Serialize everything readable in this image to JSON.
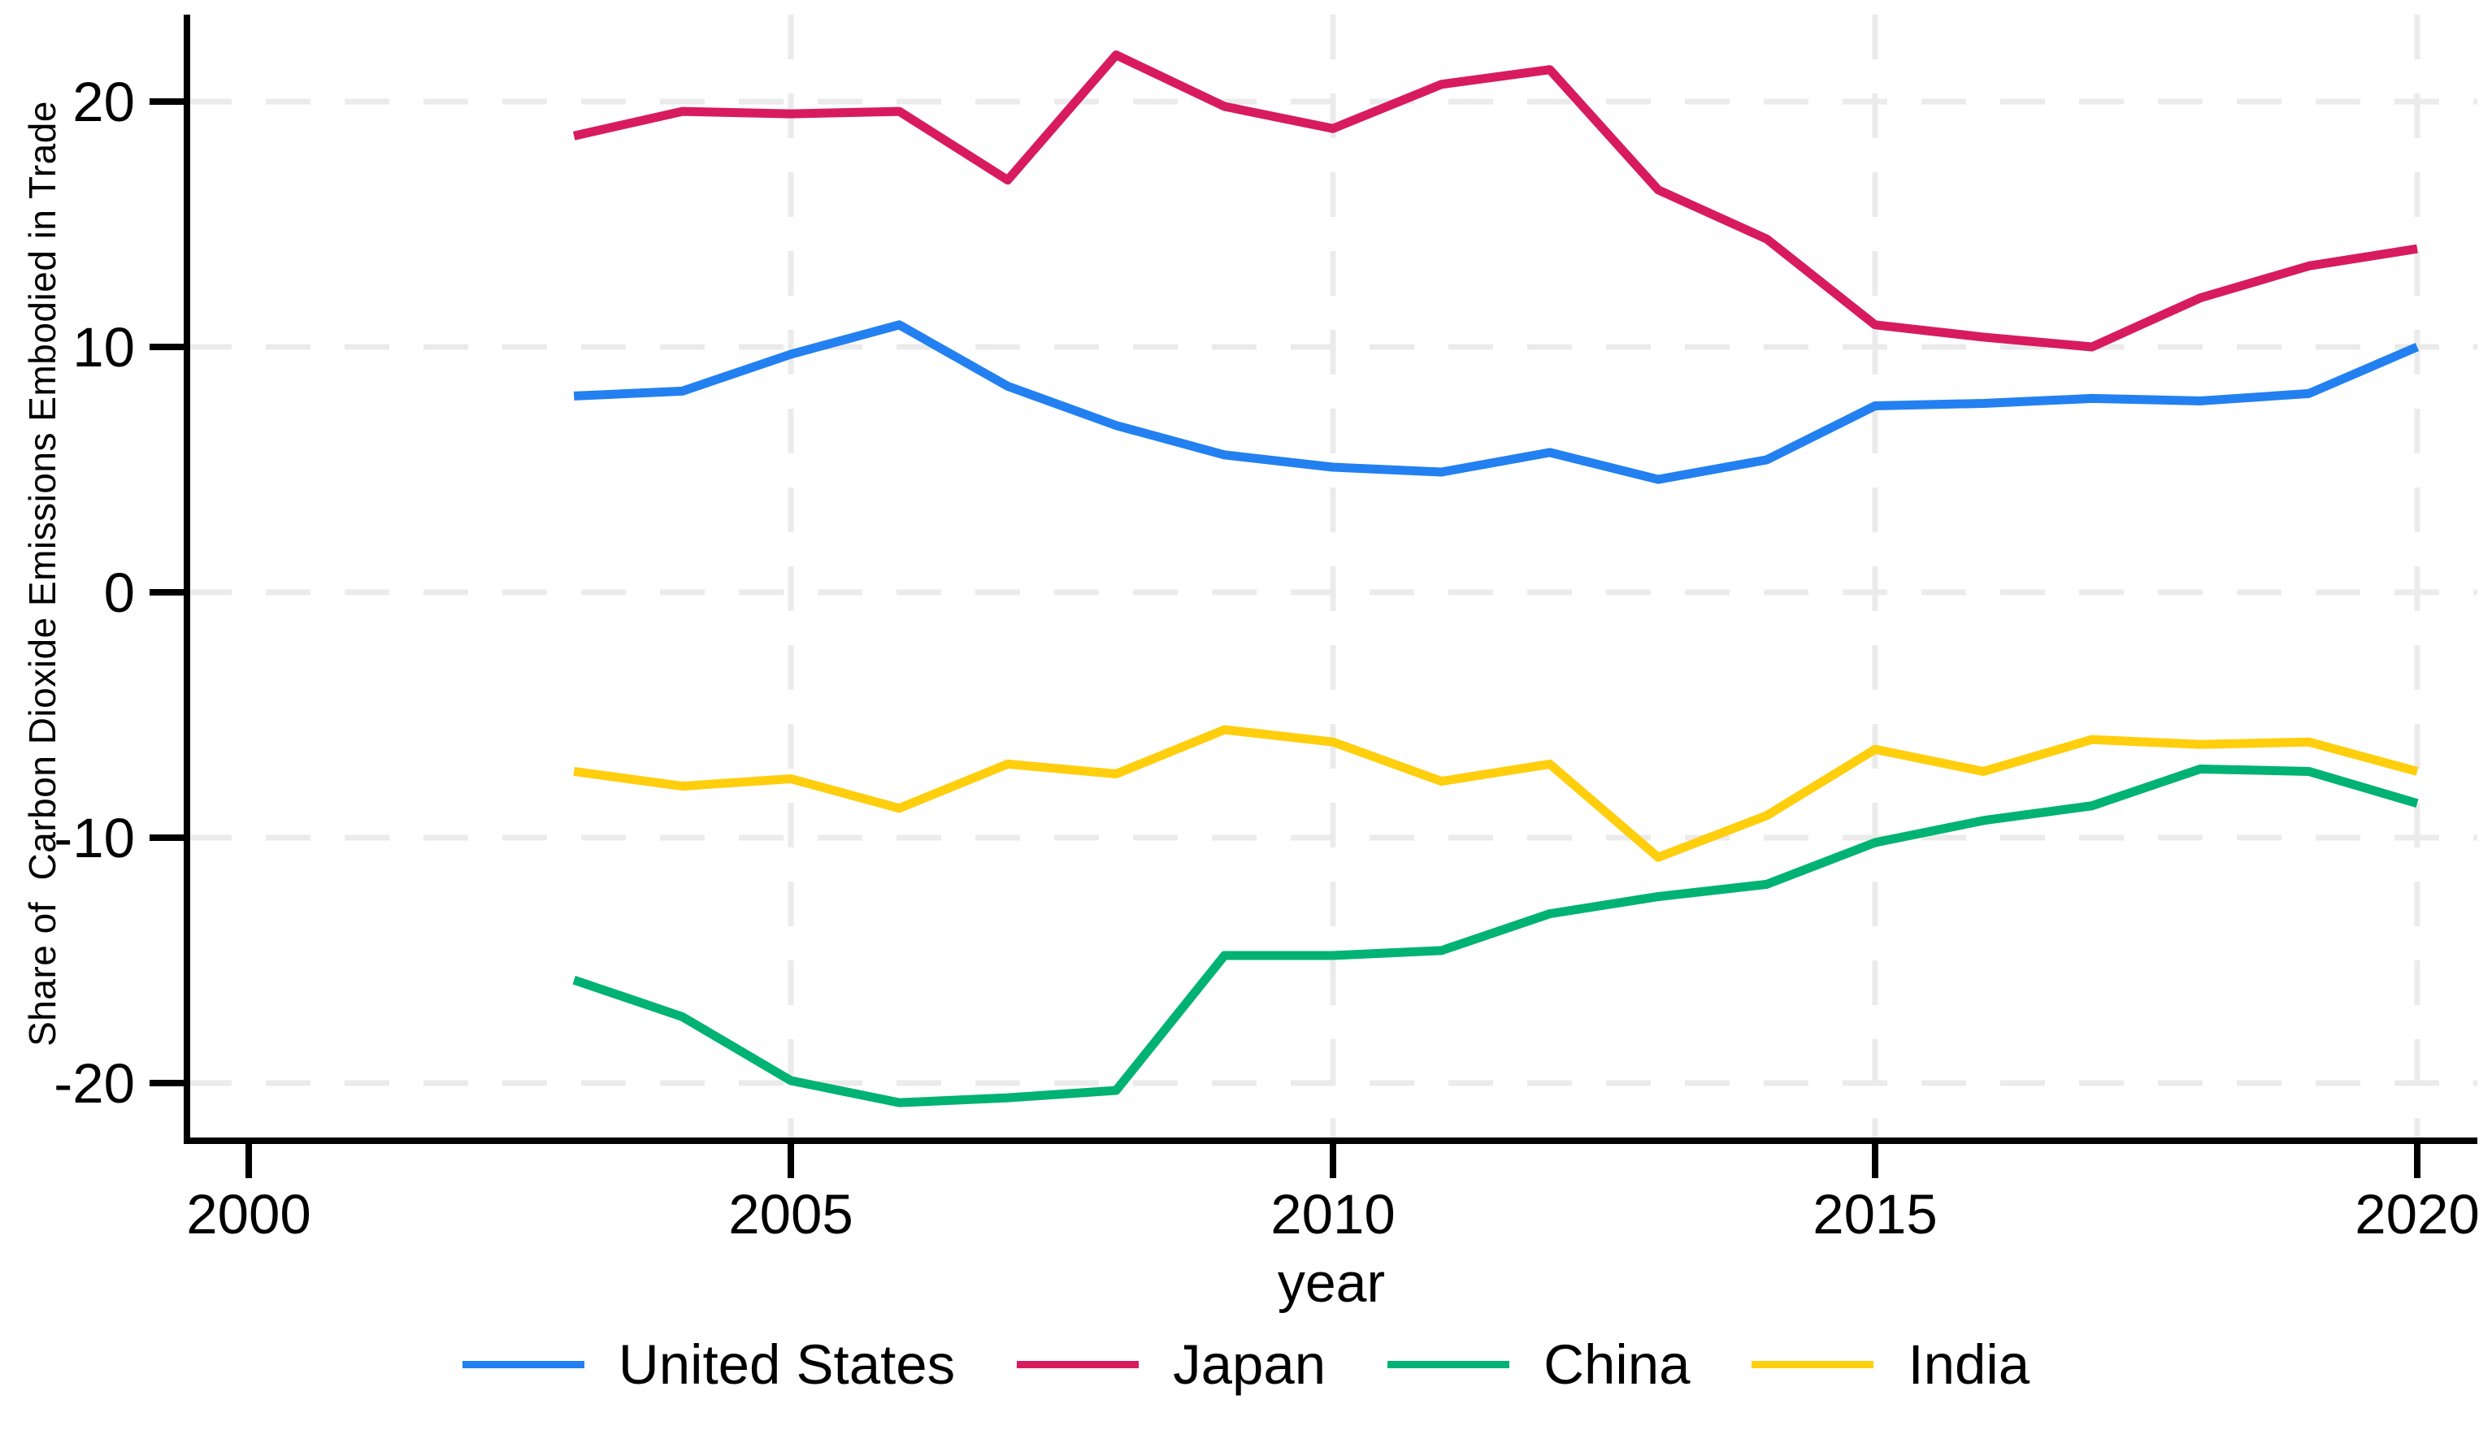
{
  "chart_data": {
    "type": "line",
    "title": "",
    "xlabel": "year",
    "ylabel": "Share of  Carbon Dioxide Emissions Embodied in Trade",
    "x": [
      2003,
      2004,
      2005,
      2006,
      2007,
      2008,
      2009,
      2010,
      2011,
      2012,
      2013,
      2014,
      2015,
      2016,
      2017,
      2018,
      2019,
      2020
    ],
    "series": [
      {
        "name": "United States",
        "color": "#2380F0",
        "values": [
          8.0,
          8.2,
          9.7,
          10.9,
          8.4,
          6.8,
          5.6,
          5.1,
          4.9,
          5.7,
          4.6,
          5.4,
          7.6,
          7.7,
          7.9,
          7.8,
          8.1,
          10.0
        ]
      },
      {
        "name": "Japan",
        "color": "#D81B5E",
        "values": [
          18.6,
          19.6,
          19.5,
          19.6,
          16.8,
          21.9,
          19.8,
          18.9,
          20.7,
          21.3,
          16.4,
          14.4,
          10.9,
          10.4,
          10.0,
          12.0,
          13.3,
          14.0
        ]
      },
      {
        "name": "China",
        "color": "#00B273",
        "values": [
          -15.8,
          -17.3,
          -19.9,
          -20.8,
          -20.6,
          -20.3,
          -14.8,
          -14.8,
          -14.6,
          -13.1,
          -12.4,
          -11.9,
          -10.2,
          -9.3,
          -8.7,
          -7.2,
          -7.3,
          -8.6
        ]
      },
      {
        "name": "India",
        "color": "#FFCE0D",
        "values": [
          -7.3,
          -7.9,
          -7.6,
          -8.8,
          -7.0,
          -7.4,
          -5.6,
          -6.1,
          -7.7,
          -7.0,
          -10.8,
          -9.1,
          -6.4,
          -7.3,
          -6.0,
          -6.2,
          -6.1,
          -7.3
        ]
      }
    ],
    "xticks": [
      2000,
      2005,
      2010,
      2015,
      2020
    ],
    "yticks": [
      -20,
      -10,
      0,
      10,
      20
    ],
    "xlim": [
      1999.4,
      2020.6
    ],
    "ylim": [
      -22.4,
      23.5
    ],
    "grid": "dashed horizontal and vertical light gray; no vertical gridline at 2000",
    "legend_position": "bottom center, horizontal",
    "axis_color": "#000000",
    "grid_color": "#EBEBEB",
    "background_color": "#FFFFFF"
  }
}
